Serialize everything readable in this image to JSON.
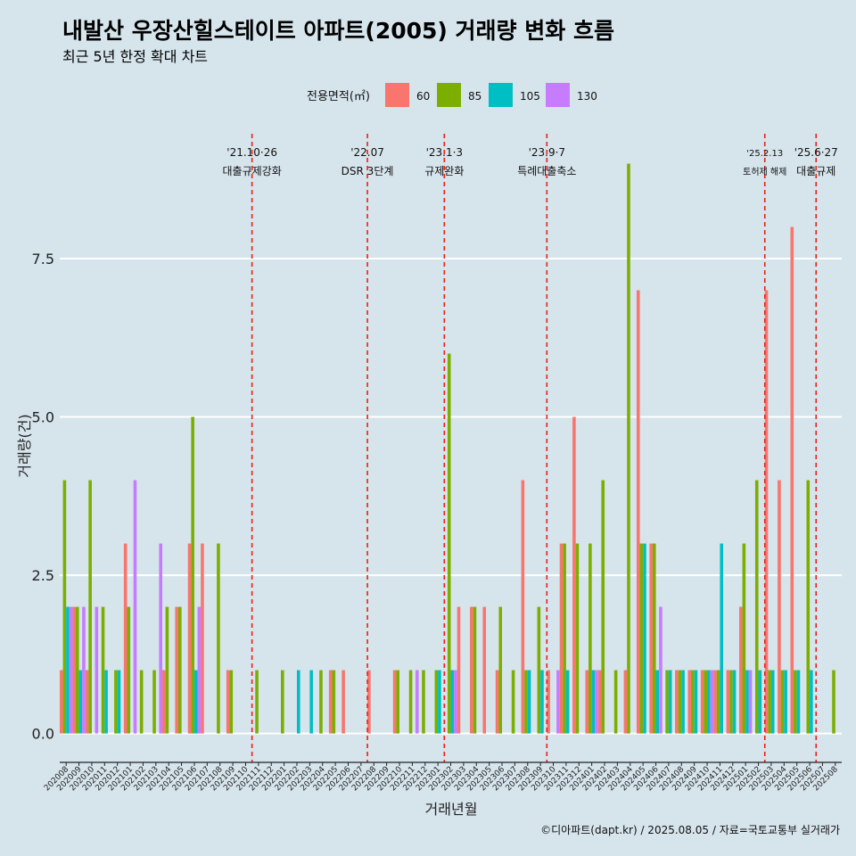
{
  "chart_data": {
    "type": "bar",
    "title": "내발산 우장산힐스테이트 아파트(2005) 거래량 변화 흐름",
    "subtitle": "최근 5년 한정 확대 차트",
    "xlabel": "거래년월",
    "ylabel": "거래량(건)",
    "ylim": [
      -0.4,
      9.5
    ],
    "yticks": [
      0.0,
      2.5,
      5.0,
      7.5
    ],
    "ytick_labels": [
      "0.0",
      "2.5",
      "5.0",
      "7.5"
    ],
    "legend_title": "전용면적(㎡)",
    "legend_position": "top",
    "caption": "©디아파트(dapt.kr) / 2025.08.05 / 자료=국토교통부 실거래가",
    "categories": [
      "202008",
      "202009",
      "202010",
      "202011",
      "202012",
      "202101",
      "202102",
      "202103",
      "202104",
      "202105",
      "202106",
      "202107",
      "202108",
      "202109",
      "202110",
      "202111",
      "202112",
      "202201",
      "202202",
      "202203",
      "202204",
      "202205",
      "202206",
      "202207",
      "202208",
      "202209",
      "202210",
      "202211",
      "202212",
      "202301",
      "202302",
      "202303",
      "202304",
      "202305",
      "202306",
      "202307",
      "202308",
      "202309",
      "202310",
      "202311",
      "202312",
      "202401",
      "202402",
      "202403",
      "202404",
      "202405",
      "202406",
      "202407",
      "202408",
      "202409",
      "202410",
      "202411",
      "202412",
      "202501",
      "202502",
      "202503",
      "202504",
      "202505",
      "202506",
      "202507",
      "202508"
    ],
    "series": [
      {
        "name": "60",
        "color": "#f8766d",
        "values": [
          1,
          2,
          1,
          0,
          0,
          3,
          0,
          0,
          1,
          2,
          3,
          3,
          0,
          1,
          0,
          0,
          0,
          0,
          0,
          0,
          0,
          1,
          1,
          0,
          1,
          0,
          1,
          0,
          0,
          0,
          0,
          2,
          2,
          2,
          1,
          0,
          4,
          0,
          1,
          3,
          5,
          1,
          1,
          0,
          1,
          7,
          3,
          0,
          1,
          1,
          1,
          1,
          1,
          2,
          0,
          7,
          4,
          8,
          0,
          0,
          0
        ]
      },
      {
        "name": "85",
        "color": "#7cae00",
        "values": [
          4,
          2,
          4,
          2,
          1,
          2,
          1,
          1,
          2,
          2,
          5,
          0,
          3,
          1,
          0,
          1,
          0,
          1,
          0,
          0,
          1,
          1,
          0,
          0,
          0,
          0,
          1,
          1,
          1,
          1,
          6,
          0,
          2,
          0,
          2,
          1,
          1,
          2,
          0,
          3,
          3,
          3,
          4,
          1,
          9,
          3,
          3,
          1,
          1,
          1,
          1,
          1,
          1,
          3,
          4,
          1,
          1,
          1,
          4,
          0,
          1
        ]
      },
      {
        "name": "105",
        "color": "#00bfc4",
        "values": [
          2,
          1,
          0,
          1,
          1,
          0,
          0,
          0,
          0,
          0,
          1,
          0,
          0,
          0,
          0,
          0,
          0,
          0,
          1,
          1,
          0,
          0,
          0,
          0,
          0,
          0,
          0,
          0,
          0,
          1,
          1,
          0,
          0,
          0,
          0,
          0,
          1,
          1,
          0,
          1,
          0,
          1,
          0,
          0,
          0,
          3,
          1,
          1,
          1,
          1,
          1,
          3,
          1,
          1,
          1,
          1,
          1,
          1,
          1,
          0,
          0
        ]
      },
      {
        "name": "130",
        "color": "#c77cff",
        "values": [
          2,
          2,
          2,
          0,
          0,
          4,
          0,
          3,
          0,
          0,
          2,
          0,
          0,
          0,
          0,
          0,
          0,
          0,
          0,
          0,
          0,
          0,
          0,
          0,
          0,
          0,
          0,
          1,
          0,
          0,
          1,
          0,
          0,
          0,
          0,
          0,
          0,
          0,
          1,
          0,
          0,
          1,
          0,
          0,
          0,
          0,
          2,
          0,
          0,
          0,
          1,
          0,
          0,
          1,
          0,
          0,
          0,
          0,
          0,
          0,
          0
        ]
      }
    ],
    "events": [
      {
        "date_label": "'21.10·26",
        "desc": "대출규제강화",
        "after": "202110"
      },
      {
        "date_label": "'22.07",
        "desc": "DSR 3단계",
        "after": "202207"
      },
      {
        "date_label": "'23.1·3",
        "desc": "규제완화",
        "after": "202301"
      },
      {
        "date_label": "'23.9·7",
        "desc": "특례대출축소",
        "after": "202309"
      },
      {
        "date_label": "'25.2.13",
        "desc": "토허제 해제",
        "after": "202502",
        "small": true
      },
      {
        "date_label": "'25.6·27",
        "desc": "대출규제",
        "after": "202506"
      }
    ],
    "grid": true
  }
}
